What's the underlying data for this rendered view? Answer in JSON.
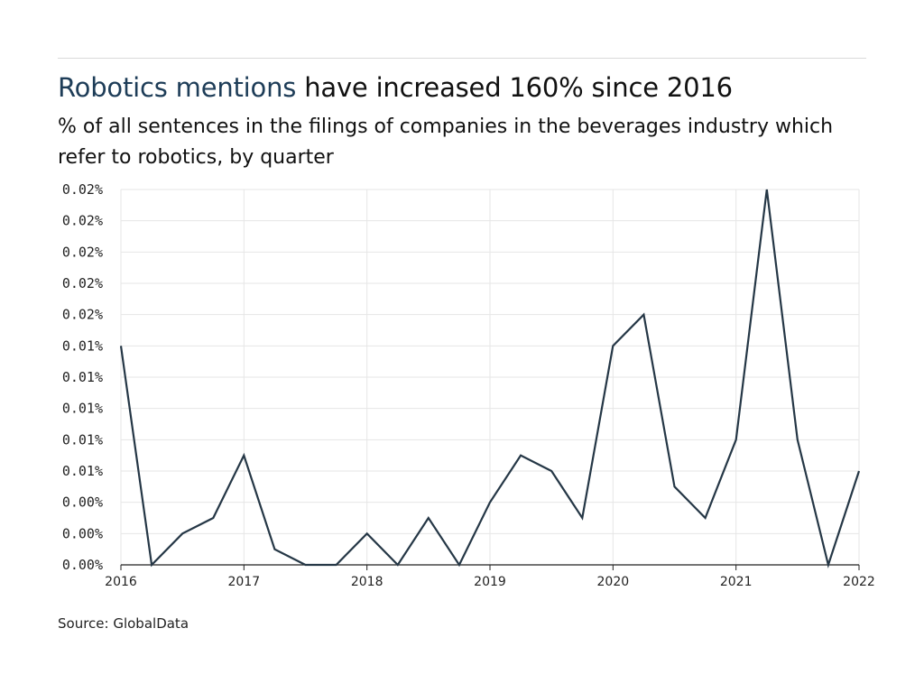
{
  "header": {
    "title_highlight": "Robotics mentions",
    "title_rest": " have increased 160% since 2016",
    "subtitle": "% of all sentences in the filings of companies in the beverages industry which refer to robotics, by quarter"
  },
  "footer": {
    "source": "Source: GlobalData"
  },
  "colors": {
    "line": "#253746",
    "highlight": "#1e3d58",
    "grid": "#e6e6e6",
    "axis": "#222222"
  },
  "chart_data": {
    "type": "line",
    "title": "Robotics mentions have increased 160% since 2016",
    "subtitle": "% of all sentences in the filings of companies in the beverages industry which refer to robotics, by quarter",
    "xlabel": "",
    "ylabel": "",
    "x_tick_labels": [
      "2016",
      "2017",
      "2018",
      "2019",
      "2020",
      "2021",
      "2022"
    ],
    "y_tick_labels": [
      "0.00%",
      "0.00%",
      "0.00%",
      "0.01%",
      "0.01%",
      "0.01%",
      "0.01%",
      "0.01%",
      "0.02%",
      "0.02%",
      "0.02%",
      "0.02%",
      "0.02%"
    ],
    "ylim": [
      0,
      0.024
    ],
    "xlim": [
      2016.0,
      2022.0
    ],
    "grid": true,
    "legend": "none",
    "series": [
      {
        "x": [
          2016.0,
          2016.25,
          2016.5,
          2016.75,
          2017.0,
          2017.25,
          2017.5,
          2017.75,
          2018.0,
          2018.25,
          2018.5,
          2018.75,
          2019.0,
          2019.25,
          2019.5,
          2019.75,
          2020.0,
          2020.25,
          2020.5,
          2020.75,
          2021.0,
          2021.25,
          2021.5,
          2021.75,
          2022.0
        ],
        "values": [
          0.014,
          0.0,
          0.002,
          0.003,
          0.007,
          0.001,
          0.0,
          0.0,
          0.002,
          0.0,
          0.003,
          0.0,
          0.004,
          0.007,
          0.006,
          0.003,
          0.014,
          0.016,
          0.005,
          0.003,
          0.008,
          0.024,
          0.008,
          0.0,
          0.006
        ]
      }
    ]
  }
}
